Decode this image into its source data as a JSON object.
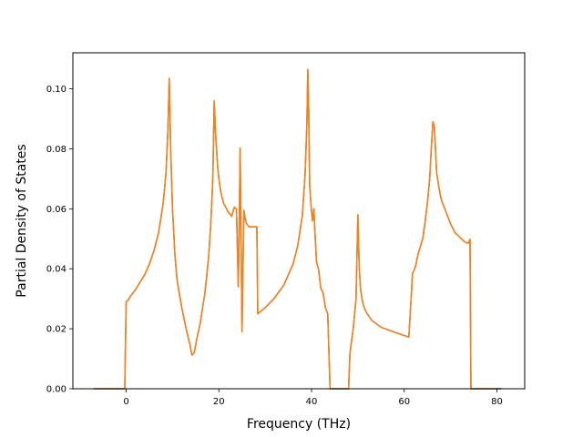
{
  "chart_data": {
    "type": "line",
    "title": "",
    "xlabel": "Frequency (THz)",
    "ylabel": "Partial Density of States",
    "xlim": [
      -11.5,
      86.0
    ],
    "ylim": [
      0.0,
      0.112
    ],
    "xticks": [
      0,
      20,
      40,
      60,
      80
    ],
    "yticks": [
      0.0,
      0.02,
      0.04,
      0.06,
      0.08,
      0.1
    ],
    "xtick_labels": [
      "0",
      "20",
      "40",
      "60",
      "80"
    ],
    "ytick_labels": [
      "0.00",
      "0.02",
      "0.04",
      "0.06",
      "0.08",
      "0.10"
    ],
    "grid": false,
    "legend": false,
    "series": [
      {
        "color": "#1f77b4",
        "x": [
          -7.0,
          -1.0,
          -0.3,
          0.0,
          0.4,
          1.0,
          2.0,
          3.0,
          4.0,
          5.0,
          6.0,
          7.0,
          8.0,
          8.6,
          9.0,
          9.3,
          9.6,
          10.0,
          10.5,
          11.0,
          12.0,
          13.0,
          13.8,
          14.2,
          14.7,
          15.3,
          16.0,
          17.0,
          17.8,
          18.3,
          18.7,
          19.0,
          19.3,
          19.7,
          20.0,
          20.5,
          21.0,
          22.0,
          22.8,
          23.3,
          23.8,
          24.2,
          24.4,
          24.6,
          24.8,
          25.0,
          25.2,
          25.4,
          25.7,
          26.0,
          26.5,
          27.0,
          28.0,
          28.2,
          28.4,
          30.0,
          32.0,
          34.0,
          36.0,
          37.0,
          38.0,
          38.6,
          39.0,
          39.2,
          39.4,
          39.6,
          39.9,
          40.2,
          40.5,
          40.8,
          41.1,
          41.5,
          42.0,
          42.5,
          43.0,
          43.5,
          44.0,
          44.5,
          44.6,
          44.8,
          46.0,
          47.5,
          48.0,
          48.3,
          49.0,
          49.6,
          50.0,
          50.3,
          50.6,
          51.0,
          51.5,
          52.0,
          53.0,
          55.0,
          58.0,
          61.0,
          61.8,
          62.0,
          62.5,
          63.0,
          64.0,
          64.5,
          65.0,
          65.5,
          65.8,
          66.2,
          66.5,
          67.0,
          67.5,
          68.0,
          69.0,
          70.0,
          71.0,
          72.0,
          73.0,
          73.8,
          74.2,
          74.4,
          74.6,
          76.0,
          78.0,
          81.0
        ],
        "y": [
          0.0,
          0.0,
          0.0,
          0.029,
          0.0295,
          0.031,
          0.033,
          0.0355,
          0.038,
          0.0415,
          0.046,
          0.052,
          0.062,
          0.072,
          0.086,
          0.1035,
          0.08,
          0.06,
          0.045,
          0.036,
          0.027,
          0.0195,
          0.0145,
          0.0112,
          0.012,
          0.017,
          0.022,
          0.032,
          0.044,
          0.056,
          0.07,
          0.096,
          0.085,
          0.075,
          0.07,
          0.065,
          0.062,
          0.059,
          0.0575,
          0.0605,
          0.06,
          0.034,
          0.055,
          0.0802,
          0.05,
          0.019,
          0.04,
          0.0595,
          0.0565,
          0.055,
          0.054,
          0.054,
          0.054,
          0.054,
          0.025,
          0.027,
          0.0302,
          0.0345,
          0.0415,
          0.0475,
          0.0575,
          0.071,
          0.0885,
          0.1065,
          0.092,
          0.068,
          0.061,
          0.056,
          0.06,
          0.05,
          0.042,
          0.04,
          0.0335,
          0.032,
          0.027,
          0.025,
          0.0,
          0.0,
          0.0,
          0.0,
          0.0,
          0.0,
          0.0,
          0.012,
          0.02,
          0.03,
          0.058,
          0.04,
          0.033,
          0.029,
          0.0265,
          0.025,
          0.0228,
          0.0205,
          0.0188,
          0.0172,
          0.0385,
          0.039,
          0.041,
          0.045,
          0.05,
          0.0555,
          0.062,
          0.07,
          0.079,
          0.089,
          0.0875,
          0.072,
          0.067,
          0.063,
          0.059,
          0.055,
          0.052,
          0.0505,
          0.049,
          0.0485,
          0.0498,
          0.0,
          0.0,
          0.0,
          0.0,
          0.0
        ]
      },
      {
        "color": "#ff7f0e",
        "x": [
          -7.0,
          -1.0,
          -0.3,
          0.0,
          0.4,
          1.0,
          2.0,
          3.0,
          4.0,
          5.0,
          6.0,
          7.0,
          8.0,
          8.6,
          9.0,
          9.3,
          9.6,
          10.0,
          10.5,
          11.0,
          12.0,
          13.0,
          13.8,
          14.2,
          14.7,
          15.3,
          16.0,
          17.0,
          17.8,
          18.3,
          18.7,
          19.0,
          19.3,
          19.7,
          20.0,
          20.5,
          21.0,
          22.0,
          22.8,
          23.3,
          23.8,
          24.2,
          24.4,
          24.6,
          24.8,
          25.0,
          25.2,
          25.4,
          25.7,
          26.0,
          26.5,
          27.0,
          28.0,
          28.2,
          28.4,
          30.0,
          32.0,
          34.0,
          36.0,
          37.0,
          38.0,
          38.6,
          39.0,
          39.2,
          39.4,
          39.6,
          39.9,
          40.2,
          40.5,
          40.8,
          41.1,
          41.5,
          42.0,
          42.5,
          43.0,
          43.5,
          44.0,
          44.5,
          44.6,
          44.8,
          46.0,
          47.5,
          48.0,
          48.3,
          49.0,
          49.6,
          50.0,
          50.3,
          50.6,
          51.0,
          51.5,
          52.0,
          53.0,
          55.0,
          58.0,
          61.0,
          61.8,
          62.0,
          62.5,
          63.0,
          64.0,
          64.5,
          65.0,
          65.5,
          65.8,
          66.2,
          66.5,
          67.0,
          67.5,
          68.0,
          69.0,
          70.0,
          71.0,
          72.0,
          73.0,
          73.8,
          74.2,
          74.4,
          74.6,
          76.0,
          78.0,
          81.0
        ],
        "y": [
          0.0,
          0.0,
          0.0,
          0.029,
          0.0295,
          0.031,
          0.033,
          0.0355,
          0.038,
          0.0415,
          0.046,
          0.052,
          0.062,
          0.072,
          0.086,
          0.1035,
          0.08,
          0.06,
          0.045,
          0.036,
          0.027,
          0.0195,
          0.0145,
          0.0112,
          0.012,
          0.017,
          0.022,
          0.032,
          0.044,
          0.056,
          0.07,
          0.096,
          0.085,
          0.075,
          0.07,
          0.065,
          0.062,
          0.059,
          0.0575,
          0.0605,
          0.06,
          0.034,
          0.055,
          0.0802,
          0.05,
          0.019,
          0.04,
          0.0595,
          0.0565,
          0.055,
          0.054,
          0.054,
          0.054,
          0.054,
          0.025,
          0.027,
          0.0302,
          0.0345,
          0.0415,
          0.0475,
          0.0575,
          0.071,
          0.0885,
          0.1065,
          0.092,
          0.068,
          0.061,
          0.056,
          0.06,
          0.05,
          0.042,
          0.04,
          0.0335,
          0.032,
          0.027,
          0.025,
          0.0,
          0.0,
          0.0,
          0.0,
          0.0,
          0.0,
          0.0,
          0.012,
          0.02,
          0.03,
          0.058,
          0.04,
          0.033,
          0.029,
          0.0265,
          0.025,
          0.0228,
          0.0205,
          0.0188,
          0.0172,
          0.0385,
          0.039,
          0.041,
          0.045,
          0.05,
          0.0555,
          0.062,
          0.07,
          0.079,
          0.089,
          0.0875,
          0.072,
          0.067,
          0.063,
          0.059,
          0.055,
          0.052,
          0.0505,
          0.049,
          0.0485,
          0.0498,
          0.0,
          0.0,
          0.0,
          0.0,
          0.0
        ]
      }
    ]
  }
}
